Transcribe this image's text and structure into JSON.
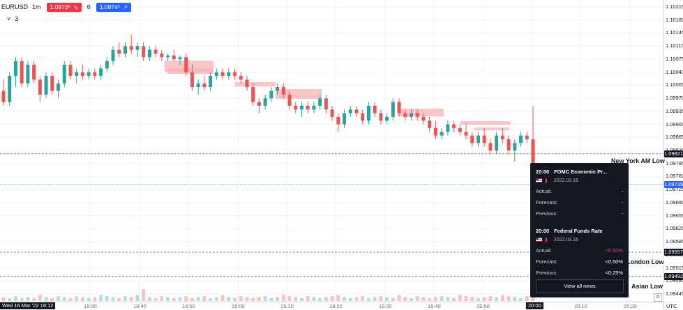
{
  "header": {
    "symbol": "EURUSD",
    "timeframe": "1m",
    "sell_price": "1.0973⁶",
    "quantity": "6",
    "buy_price": "1.0974⁵",
    "indicator_count": "3"
  },
  "y_axis": {
    "labels": [
      "1.10215",
      "1.10180",
      "1.10145",
      "1.10110",
      "1.10075",
      "1.10040",
      "1.10005",
      "1.09970",
      "1.09935",
      "1.09900",
      "1.09865",
      "1.09830",
      "1.09795",
      "1.09760",
      "1.09725",
      "1.09690",
      "1.09655",
      "1.09620",
      "1.09585",
      "1.09550",
      "1.09515",
      "1.09480",
      "1.09445"
    ],
    "tags": [
      {
        "value": "1.09821",
        "style": "dark"
      },
      {
        "value": "1.09739",
        "style": "blue"
      },
      {
        "value": "1.09557",
        "style": "dark"
      },
      {
        "value": "1.09492",
        "style": "dark"
      }
    ],
    "corner": "UTC"
  },
  "x_axis": {
    "labels": [
      "18:30",
      "18:40",
      "18:50",
      "19:00",
      "19:10",
      "19:20",
      "19:30",
      "19:40",
      "19:50",
      "20:00",
      "20:10",
      "20:20"
    ],
    "crosshair_date": "Wed 16 Mar '22 18:12",
    "crosshair_time": "20:00"
  },
  "horizontal_levels": [
    {
      "label": "New York AM Low",
      "price": 1.09821
    },
    {
      "label": "London Low",
      "price": 1.09557
    },
    {
      "label": "Asian Low",
      "price": 1.09492
    }
  ],
  "news_panel": {
    "events": [
      {
        "time": "20:00",
        "title": "FOMC Economic Pr...",
        "date": "2022.03.16",
        "actual": "-",
        "forecast": "-",
        "previous": "-"
      },
      {
        "time": "20:00",
        "title": "Federal Funds Rate",
        "date": "2022.03.16",
        "actual": "<0.50%",
        "forecast": "<0.50%",
        "previous": "<0.25%"
      }
    ],
    "labels": {
      "actual": "Actual:",
      "forecast": "Forecast:",
      "previous": "Previous:"
    },
    "button": "View all news"
  },
  "colors": {
    "up": "#26a69a",
    "down": "#ef5350",
    "zone": "#f7b3b6",
    "grid": "#f0f3fa"
  },
  "chart_data": {
    "type": "candlestick",
    "ylim": [
      1.09445,
      1.10215
    ],
    "candles_ohlc": [
      [
        1.0999,
        1.1002,
        1.0995,
        1.0996
      ],
      [
        1.0996,
        1.1004,
        1.0995,
        1.1003
      ],
      [
        1.1003,
        1.1008,
        1.1,
        1.1007
      ],
      [
        1.1007,
        1.1008,
        1.1,
        1.1001
      ],
      [
        1.1001,
        1.1007,
        1.1,
        1.1006
      ],
      [
        1.1006,
        1.1007,
        1.1001,
        1.1002
      ],
      [
        1.1002,
        1.1003,
        1.0996,
        1.0998
      ],
      [
        1.0998,
        1.1004,
        1.0997,
        1.1003
      ],
      [
        1.1003,
        1.1004,
        1.0998,
        1.0999
      ],
      [
        1.0999,
        1.1002,
        1.0997,
        1.1001
      ],
      [
        1.1001,
        1.1007,
        1.1,
        1.1006
      ],
      [
        1.1006,
        1.1007,
        1.1002,
        1.1003
      ],
      [
        1.1003,
        1.1005,
        1.1001,
        1.1004
      ],
      [
        1.1004,
        1.1006,
        1.1002,
        1.1003
      ],
      [
        1.1003,
        1.1005,
        1.1002,
        1.1004
      ],
      [
        1.1004,
        1.1005,
        1.1002,
        1.1003
      ],
      [
        1.1003,
        1.1006,
        1.1002,
        1.1005
      ],
      [
        1.1005,
        1.1008,
        1.1004,
        1.1007
      ],
      [
        1.1007,
        1.1011,
        1.1006,
        1.101
      ],
      [
        1.101,
        1.1012,
        1.1008,
        1.1009
      ],
      [
        1.1009,
        1.1012,
        1.1008,
        1.1011
      ],
      [
        1.1011,
        1.1014,
        1.1009,
        1.101
      ],
      [
        1.101,
        1.1012,
        1.1008,
        1.1011
      ],
      [
        1.1011,
        1.1012,
        1.1007,
        1.1008
      ],
      [
        1.1008,
        1.1011,
        1.1007,
        1.101
      ],
      [
        1.101,
        1.1011,
        1.1008,
        1.1009
      ],
      [
        1.1009,
        1.101,
        1.1007,
        1.1008
      ],
      [
        1.1008,
        1.1009,
        1.1007,
        1.10085
      ],
      [
        1.10085,
        1.101,
        1.1007,
        1.10075
      ],
      [
        1.10075,
        1.10085,
        1.1006,
        1.1008
      ],
      [
        1.1008,
        1.1009,
        1.1003,
        1.1004
      ],
      [
        1.1004,
        1.1006,
        1.0999,
        1.1
      ],
      [
        1.1,
        1.1002,
        1.0998,
        1.1001
      ],
      [
        1.1001,
        1.1003,
        1.0999,
        1.1
      ],
      [
        1.1,
        1.1004,
        1.0999,
        1.1003
      ],
      [
        1.1003,
        1.1005,
        1.1002,
        1.1004
      ],
      [
        1.1004,
        1.1005,
        1.1002,
        1.1003
      ],
      [
        1.1003,
        1.1005,
        1.1002,
        1.1004
      ],
      [
        1.1004,
        1.1005,
        1.1002,
        1.1003
      ],
      [
        1.1003,
        1.1004,
        1.1001,
        1.1002
      ],
      [
        1.1002,
        1.1003,
        1.0999,
        1.1
      ],
      [
        1.1,
        1.1001,
        1.0995,
        1.0996
      ],
      [
        1.0996,
        1.0997,
        1.0993,
        1.0995
      ],
      [
        1.0995,
        1.0998,
        1.0994,
        1.0997
      ],
      [
        1.0997,
        1.1,
        1.0996,
        1.0999
      ],
      [
        1.0999,
        1.1001,
        1.0998,
        1.1
      ],
      [
        1.1,
        1.1001,
        1.0997,
        1.0998
      ],
      [
        1.0998,
        1.0999,
        1.0994,
        1.0995
      ],
      [
        1.0995,
        1.0996,
        1.0993,
        1.0994
      ],
      [
        1.0994,
        1.0996,
        1.0992,
        1.0995
      ],
      [
        1.0995,
        1.0996,
        1.0993,
        1.0994
      ],
      [
        1.0994,
        1.0996,
        1.0993,
        1.0995
      ],
      [
        1.0995,
        1.0998,
        1.0994,
        1.0997
      ],
      [
        1.0997,
        1.0998,
        1.0993,
        1.0994
      ],
      [
        1.0994,
        1.0995,
        1.0991,
        1.0992
      ],
      [
        1.0992,
        1.0993,
        1.0988,
        1.099
      ],
      [
        1.099,
        1.0994,
        1.0989,
        1.0993
      ],
      [
        1.0993,
        1.0995,
        1.0992,
        1.0994
      ],
      [
        1.0994,
        1.0995,
        1.0992,
        1.0993
      ],
      [
        1.0993,
        1.0994,
        1.099,
        1.0991
      ],
      [
        1.0991,
        1.0996,
        1.099,
        1.0995
      ],
      [
        1.0995,
        1.0996,
        1.0992,
        1.0993
      ],
      [
        1.0993,
        1.0994,
        1.099,
        1.0991
      ],
      [
        1.0991,
        1.0993,
        1.099,
        1.0992
      ],
      [
        1.0992,
        1.0997,
        1.0991,
        1.0996
      ],
      [
        1.0996,
        1.0997,
        1.0992,
        1.0993
      ],
      [
        1.0993,
        1.0994,
        1.0991,
        1.0992
      ],
      [
        1.0992,
        1.0994,
        1.0991,
        1.0993
      ],
      [
        1.0993,
        1.0994,
        1.0991,
        1.0992
      ],
      [
        1.0992,
        1.0993,
        1.099,
        1.0991
      ],
      [
        1.0991,
        1.0992,
        1.0988,
        1.0989
      ],
      [
        1.0989,
        1.0991,
        1.0986,
        1.0987
      ],
      [
        1.0987,
        1.0989,
        1.0986,
        1.0988
      ],
      [
        1.0988,
        1.0991,
        1.0987,
        1.099
      ],
      [
        1.099,
        1.0991,
        1.0988,
        1.0989
      ],
      [
        1.0989,
        1.099,
        1.0987,
        1.0988
      ],
      [
        1.0988,
        1.099,
        1.0986,
        1.0987
      ],
      [
        1.0987,
        1.0988,
        1.0984,
        1.0985
      ],
      [
        1.0985,
        1.0988,
        1.0984,
        1.0987
      ],
      [
        1.0987,
        1.0989,
        1.0984,
        1.0985
      ],
      [
        1.0985,
        1.0986,
        1.0982,
        1.0983
      ],
      [
        1.0983,
        1.0988,
        1.0982,
        1.0987
      ],
      [
        1.0987,
        1.0989,
        1.0985,
        1.0986
      ],
      [
        1.0986,
        1.0987,
        1.0982,
        1.0983
      ],
      [
        1.0983,
        1.0986,
        1.098,
        1.0985
      ],
      [
        1.0985,
        1.0988,
        1.0984,
        1.0987
      ],
      [
        1.0987,
        1.0988,
        1.0985,
        1.0986
      ],
      [
        1.0986,
        1.0995,
        1.0976,
        1.0979
      ]
    ],
    "volumes": [
      4,
      3,
      5,
      3,
      4,
      3,
      6,
      4,
      3,
      5,
      4,
      3,
      5,
      4,
      3,
      4,
      6,
      5,
      4,
      3,
      5,
      4,
      6,
      12,
      4,
      3,
      5,
      4,
      3,
      4,
      5,
      3,
      4,
      5,
      3,
      4,
      6,
      4,
      3,
      5,
      4,
      3,
      4,
      5,
      3,
      4,
      6,
      5,
      4,
      3,
      5,
      4,
      3,
      4,
      5,
      6,
      4,
      3,
      4,
      5,
      3,
      4,
      5,
      4,
      3,
      6,
      4,
      3,
      5,
      4,
      3,
      4,
      5,
      4,
      3,
      6,
      5,
      4,
      3,
      4,
      5,
      4,
      6,
      5,
      4,
      3,
      5,
      8
    ]
  }
}
